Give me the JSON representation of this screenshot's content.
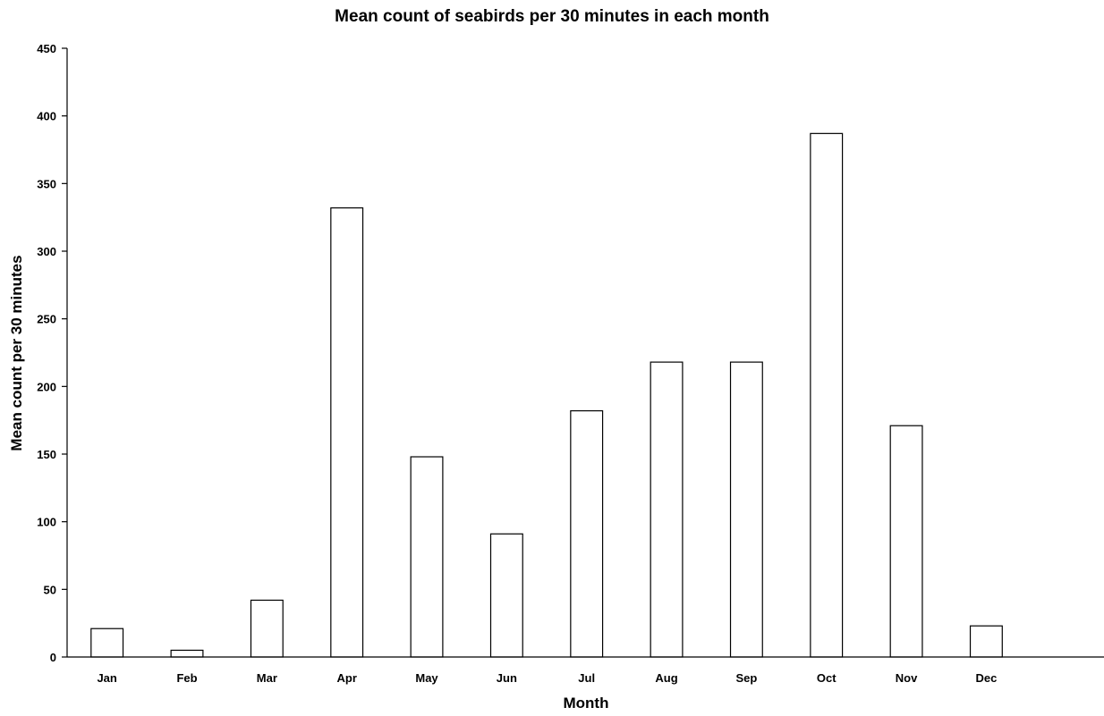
{
  "chart_data": {
    "type": "bar",
    "title": "Mean count of seabirds per 30 minutes in each month",
    "xlabel": "Month",
    "ylabel": "Mean count per 30 minutes",
    "categories": [
      "Jan",
      "Feb",
      "Mar",
      "Apr",
      "May",
      "Jun",
      "Jul",
      "Aug",
      "Sep",
      "Oct",
      "Nov",
      "Dec"
    ],
    "values": [
      21,
      5,
      42,
      332,
      148,
      91,
      182,
      218,
      218,
      387,
      171,
      23
    ],
    "ylim": [
      0,
      450
    ],
    "yticks": [
      0,
      50,
      100,
      150,
      200,
      250,
      300,
      350,
      400,
      450
    ],
    "grid": false,
    "legend": "none",
    "colors": {
      "bar_fill": "#ffffff",
      "bar_stroke": "#000000"
    }
  }
}
